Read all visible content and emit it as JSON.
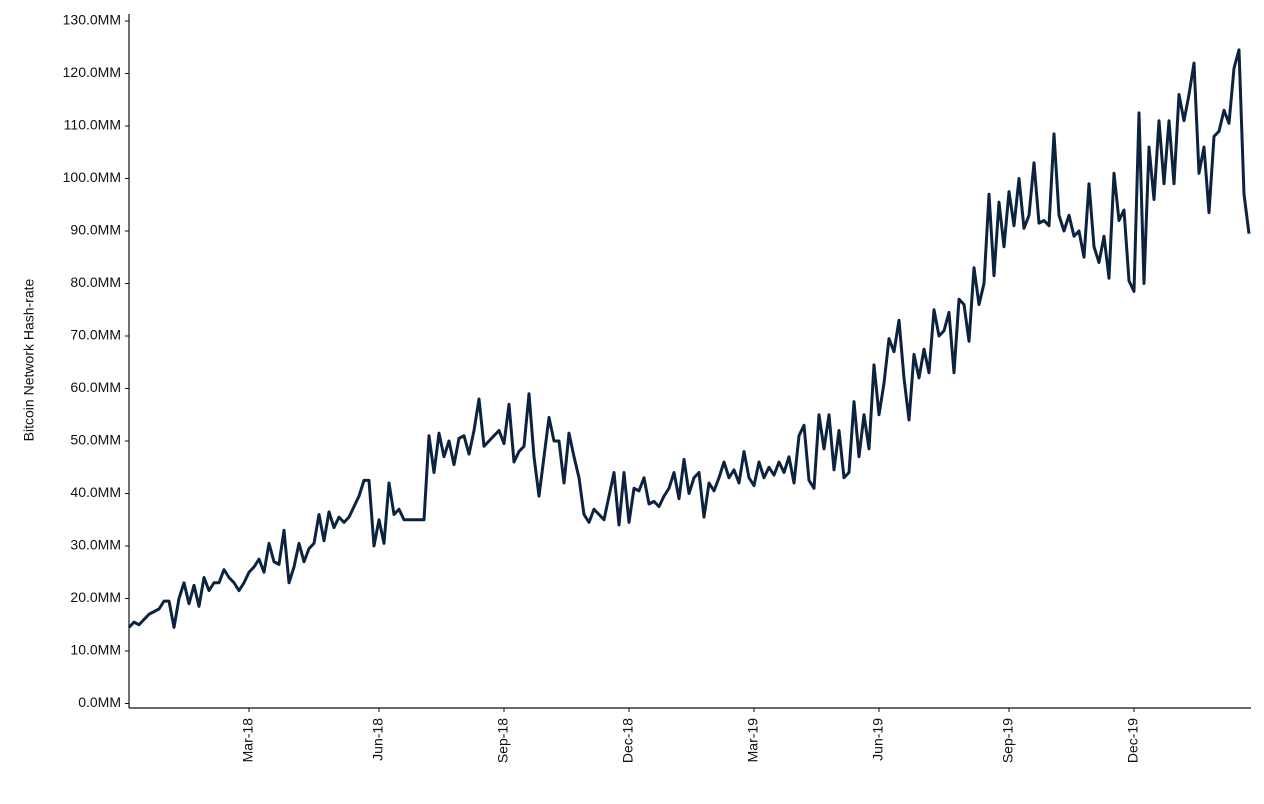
{
  "chart_data": {
    "type": "line",
    "y_label": "Bitcoin Network Hash-rate",
    "color": "#0c2340",
    "ylim": [
      0,
      130
    ],
    "yticks": [
      {
        "value": 0,
        "label": "0.0MM"
      },
      {
        "value": 10,
        "label": "10.0MM"
      },
      {
        "value": 20,
        "label": "20.0MM"
      },
      {
        "value": 30,
        "label": "30.0MM"
      },
      {
        "value": 40,
        "label": "40.0MM"
      },
      {
        "value": 50,
        "label": "50.0MM"
      },
      {
        "value": 60,
        "label": "60.0MM"
      },
      {
        "value": 70,
        "label": "70.0MM"
      },
      {
        "value": 80,
        "label": "80.0MM"
      },
      {
        "value": 90,
        "label": "90.0MM"
      },
      {
        "value": 100,
        "label": "100.0MM"
      },
      {
        "value": 110,
        "label": "110.0MM"
      },
      {
        "value": 120,
        "label": "120.0MM"
      },
      {
        "value": 130,
        "label": "130.0MM"
      }
    ],
    "categories": [
      null,
      null,
      null,
      null,
      null,
      null,
      null,
      null,
      null,
      null,
      null,
      null,
      null,
      null,
      null,
      null,
      null,
      null,
      null,
      null,
      null,
      null,
      null,
      null,
      "Mar-18",
      null,
      null,
      null,
      null,
      null,
      null,
      null,
      null,
      null,
      null,
      null,
      null,
      null,
      null,
      null,
      null,
      null,
      null,
      null,
      null,
      null,
      null,
      null,
      null,
      null,
      "Jun-18",
      null,
      null,
      null,
      null,
      null,
      null,
      null,
      null,
      null,
      null,
      null,
      null,
      null,
      null,
      null,
      null,
      null,
      null,
      null,
      null,
      null,
      null,
      null,
      null,
      "Sep-18",
      null,
      null,
      null,
      null,
      null,
      null,
      null,
      null,
      null,
      null,
      null,
      null,
      null,
      null,
      null,
      null,
      null,
      null,
      null,
      null,
      null,
      null,
      null,
      null,
      "Dec-18",
      null,
      null,
      null,
      null,
      null,
      null,
      null,
      null,
      null,
      null,
      null,
      null,
      null,
      null,
      null,
      null,
      null,
      null,
      null,
      null,
      null,
      null,
      null,
      null,
      "Mar-19",
      null,
      null,
      null,
      null,
      null,
      null,
      null,
      null,
      null,
      null,
      null,
      null,
      null,
      null,
      null,
      null,
      null,
      null,
      null,
      null,
      null,
      null,
      null,
      null,
      "Jun-19",
      null,
      null,
      null,
      null,
      null,
      null,
      null,
      null,
      null,
      null,
      null,
      null,
      null,
      null,
      null,
      null,
      null,
      null,
      null,
      null,
      null,
      null,
      null,
      null,
      null,
      "Sep-19",
      null,
      null,
      null,
      null,
      null,
      null,
      null,
      null,
      null,
      null,
      null,
      null,
      null,
      null,
      null,
      null,
      null,
      null,
      null,
      null,
      null,
      null,
      null,
      null,
      "Dec-19",
      null,
      null,
      null,
      null,
      null,
      null,
      null,
      null,
      null,
      null,
      null,
      null,
      null,
      null,
      null,
      null,
      null,
      null,
      null,
      null,
      null,
      null,
      null
    ],
    "values": [
      14.5,
      15.5,
      15,
      16,
      17,
      17.5,
      18,
      19.5,
      19.5,
      14.5,
      20,
      23,
      19,
      22.5,
      18.5,
      24,
      21.5,
      23,
      23,
      25.5,
      24,
      23,
      21.5,
      23,
      25,
      26,
      27.5,
      25,
      30.5,
      27,
      26.5,
      33,
      23,
      26,
      30.5,
      27,
      29.5,
      30.5,
      36,
      31,
      36.5,
      33.5,
      35.5,
      34.5,
      35.5,
      37.5,
      39.5,
      42.5,
      42.5,
      30,
      35,
      30.5,
      42,
      36,
      37,
      35,
      35,
      35,
      35,
      35,
      51,
      44,
      51.5,
      47,
      50,
      45.5,
      50.5,
      51,
      47.5,
      52,
      58,
      49,
      50,
      51,
      52,
      49.5,
      57,
      46,
      48,
      49,
      59,
      47,
      39.5,
      47,
      54.5,
      50,
      50,
      42,
      51.5,
      47,
      43,
      36,
      34.5,
      37,
      36,
      35,
      39.5,
      44,
      34,
      44,
      34.5,
      41,
      40.5,
      43,
      38,
      38.5,
      37.5,
      39.5,
      41,
      44,
      39,
      46.5,
      40,
      43,
      44,
      35.5,
      42,
      40.5,
      43,
      46,
      43,
      44.5,
      42,
      48,
      43,
      41.5,
      46,
      43,
      45,
      43.5,
      46,
      44,
      47,
      42,
      51,
      53,
      42.5,
      41,
      55,
      48.5,
      55,
      44.5,
      52,
      43,
      44,
      57.5,
      47,
      55,
      48.5,
      64.5,
      55,
      61,
      69.5,
      67,
      73,
      62,
      54,
      66.5,
      62,
      67.5,
      63,
      75,
      70,
      71,
      74.5,
      63,
      77,
      76,
      69,
      83,
      76,
      80,
      97,
      81.5,
      95.5,
      87,
      97.5,
      91,
      100,
      90.5,
      93,
      103,
      91.5,
      92,
      91,
      108.5,
      93,
      90,
      93,
      89,
      90,
      85,
      99,
      87,
      84,
      89,
      81,
      101,
      92,
      94,
      80.5,
      78.5,
      112.5,
      80,
      106,
      96,
      111,
      99,
      111,
      99,
      116,
      111,
      116,
      122,
      101,
      106,
      93.5,
      108,
      109,
      113,
      110.5,
      121,
      124.5,
      97,
      89.5
    ]
  }
}
